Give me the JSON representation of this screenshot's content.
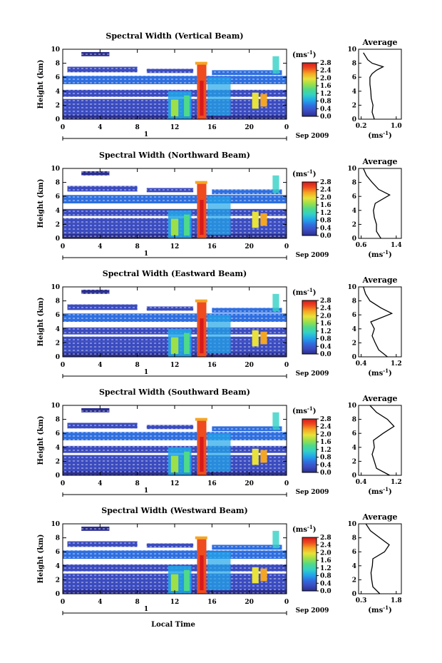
{
  "figure": {
    "x_axis_label": "Local Time",
    "date_label": "Sep 2009",
    "day_marker": "1",
    "unit_label": "(ms",
    "unit_exp": "-1",
    "avg_title": "Average",
    "avg_unit": "(ms",
    "avg_unit_exp": "-1",
    "colormap": [
      "#2b2f8f",
      "#3b4cc0",
      "#2f6fe0",
      "#22a7e8",
      "#33d1c6",
      "#4fd98a",
      "#9be04a",
      "#e8e23a",
      "#f4a623",
      "#ee4b1f",
      "#d7191c"
    ]
  },
  "chart_data": [
    {
      "type": "heatmap",
      "title": "Spectral Width (Vertical Beam)",
      "ylabel": "Height (km)",
      "xlabel": "Local Time",
      "x_ticks": [
        "0",
        "4",
        "8",
        "12",
        "16",
        "20",
        "0"
      ],
      "y_ticks": [
        "0",
        "2",
        "4",
        "6",
        "8",
        "10"
      ],
      "xlim": [
        0,
        24
      ],
      "ylim": [
        0,
        10
      ],
      "colorbar_ticks": [
        "0.0",
        "0.4",
        "0.8",
        "1.2",
        "1.6",
        "2.0",
        "2.4",
        "2.8"
      ],
      "colorbar_range": [
        0.0,
        2.8
      ],
      "profile": {
        "title": "Average",
        "x_ticks": [
          "0.2",
          "1.0"
        ],
        "xlim": [
          0.2,
          1.0
        ],
        "y_ticks": [
          "0",
          "2",
          "4",
          "6",
          "8",
          "10"
        ],
        "x": [
          0.5,
          0.45,
          0.47,
          0.43,
          0.42,
          0.4,
          0.4,
          0.45,
          0.55,
          0.7,
          0.45,
          0.35,
          0.3,
          0.25
        ],
        "y": [
          0.0,
          1.0,
          2.0,
          3.0,
          4.0,
          5.0,
          6.0,
          6.5,
          7.0,
          7.5,
          8.0,
          8.5,
          9.0,
          9.5
        ]
      }
    },
    {
      "type": "heatmap",
      "title": "Spectral Width (Northward Beam)",
      "ylabel": "Height (km)",
      "xlabel": "Local Time",
      "x_ticks": [
        "0",
        "4",
        "8",
        "12",
        "16",
        "20",
        "0"
      ],
      "y_ticks": [
        "0",
        "2",
        "4",
        "6",
        "8",
        "10"
      ],
      "xlim": [
        0,
        24
      ],
      "ylim": [
        0,
        10
      ],
      "colorbar_ticks": [
        "0.0",
        "0.4",
        "0.8",
        "1.2",
        "1.6",
        "2.0",
        "2.4",
        "2.8"
      ],
      "colorbar_range": [
        0.0,
        2.8
      ],
      "profile": {
        "title": "Average",
        "x_ticks": [
          "0.6",
          "1.4"
        ],
        "xlim": [
          0.6,
          1.4
        ],
        "y_ticks": [
          "0",
          "2",
          "4",
          "6",
          "8",
          "10"
        ],
        "x": [
          1.05,
          0.95,
          0.95,
          0.9,
          0.88,
          0.92,
          1.25,
          1.0,
          0.85,
          0.72,
          0.65
        ],
        "y": [
          0.0,
          1.0,
          2.0,
          3.0,
          4.0,
          5.0,
          6.2,
          7.0,
          8.0,
          9.0,
          10.0
        ]
      }
    },
    {
      "type": "heatmap",
      "title": "Spectral Width (Eastward Beam)",
      "ylabel": "Height (km)",
      "xlabel": "Local Time",
      "x_ticks": [
        "0",
        "4",
        "8",
        "12",
        "16",
        "20",
        "0"
      ],
      "y_ticks": [
        "0",
        "2",
        "4",
        "6",
        "8",
        "10"
      ],
      "xlim": [
        0,
        24
      ],
      "ylim": [
        0,
        10
      ],
      "colorbar_ticks": [
        "0.0",
        "0.4",
        "0.8",
        "1.2",
        "1.6",
        "2.0",
        "2.4",
        "2.8"
      ],
      "colorbar_range": [
        0.0,
        2.8
      ],
      "profile": {
        "title": "Average",
        "x_ticks": [
          "0.4",
          "1.2"
        ],
        "xlim": [
          0.4,
          1.2
        ],
        "y_ticks": [
          "0",
          "2",
          "4",
          "6",
          "8",
          "10"
        ],
        "x": [
          1.0,
          0.8,
          0.72,
          0.65,
          0.7,
          0.62,
          1.1,
          0.85,
          0.6,
          0.5,
          0.45
        ],
        "y": [
          0.0,
          1.0,
          2.0,
          3.0,
          4.0,
          5.0,
          6.2,
          7.0,
          8.0,
          9.0,
          10.0
        ]
      }
    },
    {
      "type": "heatmap",
      "title": "Spectral Width (Southward Beam)",
      "ylabel": "Height (km)",
      "xlabel": "Local Time",
      "x_ticks": [
        "0",
        "4",
        "8",
        "12",
        "16",
        "20",
        "0"
      ],
      "y_ticks": [
        "0",
        "2",
        "4",
        "6",
        "8",
        "10"
      ],
      "xlim": [
        0,
        24
      ],
      "ylim": [
        0,
        10
      ],
      "colorbar_ticks": [
        "0.0",
        "0.4",
        "0.8",
        "1.2",
        "1.6",
        "2.0",
        "2.4",
        "2.8"
      ],
      "colorbar_range": [
        0.0,
        2.8
      ],
      "profile": {
        "title": "Average",
        "x_ticks": [
          "0.4",
          "1.2"
        ],
        "xlim": [
          0.4,
          1.2
        ],
        "y_ticks": [
          "0",
          "2",
          "4",
          "6",
          "8",
          "10"
        ],
        "x": [
          1.05,
          0.75,
          0.7,
          0.65,
          0.7,
          0.68,
          0.9,
          1.15,
          1.0,
          0.75,
          0.6
        ],
        "y": [
          0.0,
          1.0,
          2.0,
          3.0,
          4.0,
          5.0,
          6.0,
          7.0,
          8.0,
          9.0,
          10.0
        ]
      }
    },
    {
      "type": "heatmap",
      "title": "Spectral Width (Westward Beam)",
      "ylabel": "Height (km)",
      "xlabel": "Local Time",
      "x_ticks": [
        "0",
        "4",
        "8",
        "12",
        "16",
        "20",
        "0"
      ],
      "y_ticks": [
        "0",
        "2",
        "4",
        "6",
        "8",
        "10"
      ],
      "xlim": [
        0,
        24
      ],
      "ylim": [
        0,
        10
      ],
      "colorbar_ticks": [
        "0.0",
        "0.4",
        "0.8",
        "1.2",
        "1.6",
        "2.0",
        "2.4",
        "2.8"
      ],
      "colorbar_range": [
        0.0,
        2.8
      ],
      "profile": {
        "title": "Average",
        "x_ticks": [
          "0.3",
          "1.8"
        ],
        "xlim": [
          0.3,
          1.8
        ],
        "y_ticks": [
          "0",
          "2",
          "4",
          "6",
          "8",
          "10"
        ],
        "x": [
          1.1,
          0.8,
          0.75,
          0.72,
          0.78,
          0.8,
          1.3,
          1.5,
          1.1,
          0.7,
          0.5
        ],
        "y": [
          0.0,
          1.0,
          2.0,
          3.0,
          4.0,
          5.0,
          6.0,
          7.0,
          8.0,
          9.0,
          10.0
        ]
      }
    }
  ]
}
